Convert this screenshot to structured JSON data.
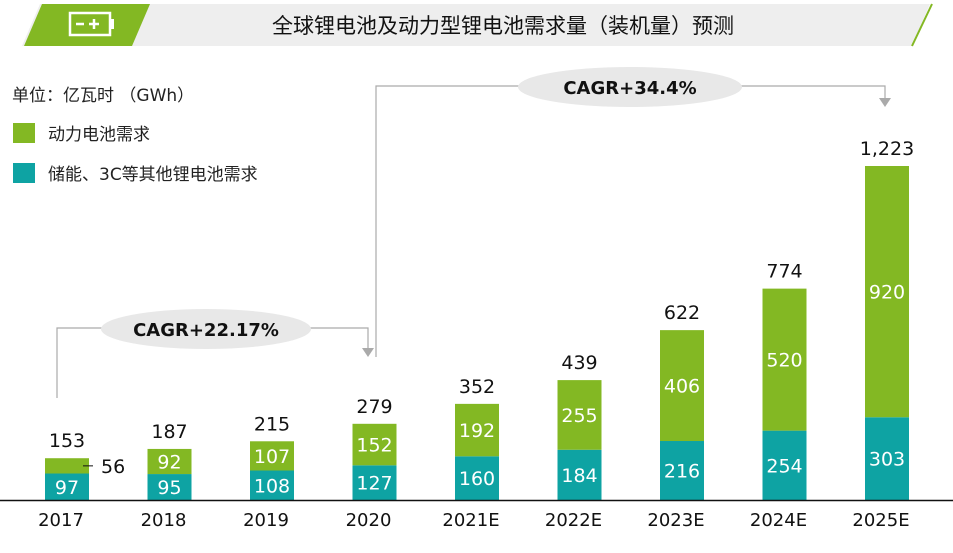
{
  "header": {
    "title": "全球锂电池及动力型锂电池需求量（装机量）预测",
    "icon": "battery-icon"
  },
  "colors": {
    "green": "#83b823",
    "teal": "#0ea3a3",
    "header_bg": "#eeeeee",
    "ellipse": "#e8e8e8"
  },
  "chart_data": {
    "type": "bar",
    "stacked": true,
    "title": "全球锂电池及动力型锂电池需求量（装机量）预测",
    "unit_label": "单位：亿瓦时 （GWh）",
    "categories": [
      "2017",
      "2018",
      "2019",
      "2020",
      "2021E",
      "2022E",
      "2023E",
      "2024E",
      "2025E"
    ],
    "series": [
      {
        "name": "储能、3C等其他锂电池需求",
        "color": "#0ea3a3",
        "values": [
          97,
          95,
          108,
          127,
          160,
          184,
          216,
          254,
          303
        ]
      },
      {
        "name": "动力电池需求",
        "color": "#83b823",
        "values": [
          56,
          92,
          107,
          152,
          192,
          255,
          406,
          520,
          920
        ]
      }
    ],
    "totals": [
      "153",
      "187",
      "215",
      "279",
      "352",
      "439",
      "622",
      "774",
      "1,223"
    ],
    "legend_position": "top-left",
    "ylim": [
      0,
      1300
    ],
    "grid": false,
    "annotations": [
      {
        "text": "CAGR+22.17%",
        "from": "2017",
        "to": "2020"
      },
      {
        "text": "CAGR+34.4%",
        "from": "2020",
        "to": "2025E"
      }
    ]
  }
}
